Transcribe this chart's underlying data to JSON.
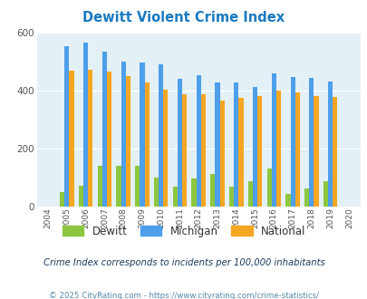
{
  "title": "Dewitt Violent Crime Index",
  "years": [
    2004,
    2005,
    2006,
    2007,
    2008,
    2009,
    2010,
    2011,
    2012,
    2013,
    2014,
    2015,
    2016,
    2017,
    2018,
    2019,
    2020
  ],
  "dewitt": [
    0,
    50,
    70,
    140,
    140,
    140,
    100,
    68,
    95,
    112,
    68,
    88,
    130,
    43,
    63,
    88,
    0
  ],
  "michigan": [
    0,
    553,
    565,
    535,
    500,
    498,
    490,
    442,
    455,
    428,
    428,
    412,
    460,
    448,
    443,
    432,
    0
  ],
  "national": [
    0,
    469,
    473,
    467,
    452,
    430,
    403,
    387,
    387,
    365,
    375,
    383,
    399,
    395,
    381,
    379,
    0
  ],
  "dewitt_color": "#8dc63f",
  "michigan_color": "#4d9fea",
  "national_color": "#f5a623",
  "bg_color": "#e3f0f5",
  "ylim": [
    0,
    600
  ],
  "yticks": [
    0,
    200,
    400,
    600
  ],
  "title_color": "#1a7abf",
  "subtitle": "Crime Index corresponds to incidents per 100,000 inhabitants",
  "footer": "© 2025 CityRating.com - https://www.cityrating.com/crime-statistics/",
  "subtitle_color": "#1a3a5c",
  "footer_color": "#5588aa"
}
